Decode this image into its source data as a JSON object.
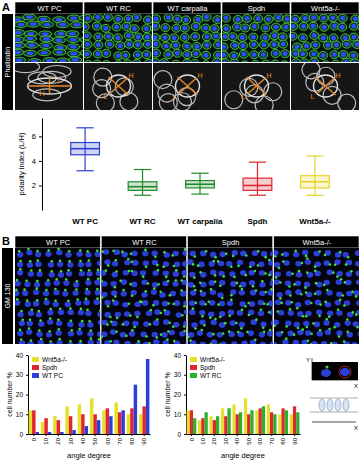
{
  "figure": {
    "panels": [
      {
        "letter": "A",
        "stain": "Phalloidin",
        "columns": [
          "WT PC",
          "WT RC",
          "WT carpalia",
          "Spdh",
          "Wnt5a-/-"
        ],
        "inset_labels": [
          "L",
          "H"
        ]
      },
      {
        "letter": "B",
        "stain": "GM 130",
        "columns": [
          "WT PC",
          "WT RC",
          "Spdh",
          "Wnt5a-/-"
        ]
      }
    ],
    "schematic_labels": [
      "Y",
      "X",
      "X"
    ]
  },
  "chart_data": [
    {
      "type": "box",
      "y_label": "polarity index (L/H)",
      "categories": [
        "WT PC",
        "WT RC",
        "WT carpalia",
        "Spdh",
        "Wnt5a-/-"
      ],
      "colors": [
        "#2b3fd6",
        "#1f8a2a",
        "#1f8a2a",
        "#e0262e",
        "#e6d42a"
      ],
      "boxes": [
        {
          "min": 3.2,
          "q1": 4.5,
          "median": 5.0,
          "q3": 5.5,
          "max": 6.7
        },
        {
          "min": 1.2,
          "q1": 1.6,
          "median": 1.9,
          "q3": 2.3,
          "max": 3.3
        },
        {
          "min": 1.3,
          "q1": 1.8,
          "median": 2.1,
          "q3": 2.4,
          "max": 3.0
        },
        {
          "min": 1.2,
          "q1": 1.6,
          "median": 2.0,
          "q3": 2.6,
          "max": 3.9
        },
        {
          "min": 1.2,
          "q1": 1.8,
          "median": 2.3,
          "q3": 2.8,
          "max": 4.4
        }
      ],
      "ylim": [
        0,
        7.5
      ],
      "yticks": [
        2,
        4,
        6
      ]
    },
    {
      "type": "bar",
      "x_label": "angle degree",
      "y_label": "cell number %",
      "categories": [
        "0",
        "10",
        "20",
        "30",
        "40",
        "50",
        "60",
        "70",
        "80",
        "90"
      ],
      "series": [
        {
          "name": "Wnt5a-/-",
          "color": "#e6e02a",
          "values": [
            12,
            6,
            9,
            14,
            15,
            18,
            12,
            16,
            10,
            10
          ]
        },
        {
          "name": "Spdh",
          "color": "#e0262e",
          "values": [
            12,
            8,
            7,
            9,
            10,
            10,
            13,
            11,
            13,
            14
          ]
        },
        {
          "name": "WT PC",
          "color": "#2b3fd6",
          "values": [
            1,
            1,
            1,
            2,
            4,
            7,
            9,
            12,
            25,
            38
          ]
        }
      ],
      "ylim": [
        0,
        40
      ],
      "yticks": [
        0,
        10,
        20,
        30,
        40
      ],
      "legend": "top-left"
    },
    {
      "type": "bar",
      "x_label": "angle degree",
      "y_label": "cell number %",
      "categories": [
        "0",
        "10",
        "20",
        "30",
        "40",
        "50",
        "60",
        "70",
        "80",
        "90"
      ],
      "series": [
        {
          "name": "Wnt5a-/-",
          "color": "#e6e02a",
          "values": [
            12,
            7,
            9,
            13,
            15,
            18,
            12,
            15,
            10,
            10
          ]
        },
        {
          "name": "Spdh",
          "color": "#e0262e",
          "values": [
            12,
            8,
            7,
            9,
            10,
            10,
            13,
            11,
            13,
            14
          ]
        },
        {
          "name": "WT RC",
          "color": "#2ab02a",
          "values": [
            8,
            11,
            9,
            13,
            11,
            12,
            14,
            10,
            12,
            11
          ]
        }
      ],
      "ylim": [
        0,
        40
      ],
      "yticks": [
        0,
        10,
        20,
        30,
        40
      ],
      "legend": "top-left"
    }
  ]
}
